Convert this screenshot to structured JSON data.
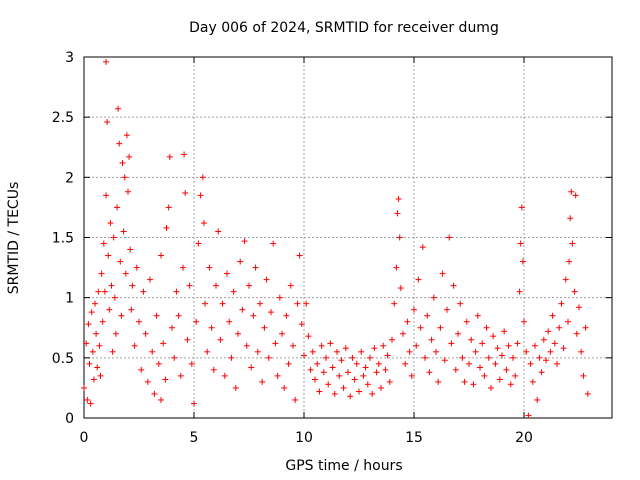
{
  "chart_data": {
    "type": "scatter",
    "title": "Day 006 of 2024, SRMTID for receiver dumg",
    "xlabel": "GPS time / hours",
    "ylabel": "SRMTID / TECUs",
    "xlim": [
      0,
      24
    ],
    "ylim": [
      0,
      3
    ],
    "xticks": [
      0,
      5,
      10,
      15,
      20
    ],
    "xtick_labels": [
      "0",
      "5",
      "10",
      "15",
      "20"
    ],
    "yticks": [
      0,
      0.5,
      1,
      1.5,
      2,
      2.5,
      3
    ],
    "ytick_labels": [
      "0",
      "0.5",
      "1",
      "1.5",
      "2",
      "2.5",
      "3"
    ],
    "grid": true,
    "marker": "+",
    "color": "#ff0000",
    "series": [
      {
        "name": "SRMTID",
        "points": [
          [
            0.0,
            0.25
          ],
          [
            0.1,
            0.62
          ],
          [
            0.15,
            0.15
          ],
          [
            0.2,
            0.78
          ],
          [
            0.25,
            0.45
          ],
          [
            0.3,
            0.12
          ],
          [
            0.35,
            0.88
          ],
          [
            0.4,
            0.55
          ],
          [
            0.45,
            0.32
          ],
          [
            0.5,
            0.95
          ],
          [
            0.55,
            0.7
          ],
          [
            0.6,
            0.42
          ],
          [
            0.65,
            1.05
          ],
          [
            0.7,
            0.6
          ],
          [
            0.75,
            0.35
          ],
          [
            0.8,
            1.2
          ],
          [
            0.85,
            0.8
          ],
          [
            0.9,
            1.45
          ],
          [
            0.95,
            1.05
          ],
          [
            1.0,
            1.85
          ],
          [
            1.0,
            2.96
          ],
          [
            1.05,
            2.46
          ],
          [
            1.1,
            1.35
          ],
          [
            1.15,
            0.9
          ],
          [
            1.2,
            1.62
          ],
          [
            1.25,
            1.1
          ],
          [
            1.3,
            0.55
          ],
          [
            1.35,
            1.5
          ],
          [
            1.4,
            1.0
          ],
          [
            1.45,
            0.7
          ],
          [
            1.5,
            1.75
          ],
          [
            1.55,
            2.57
          ],
          [
            1.6,
            2.28
          ],
          [
            1.65,
            1.3
          ],
          [
            1.7,
            0.85
          ],
          [
            1.75,
            2.12
          ],
          [
            1.8,
            1.55
          ],
          [
            1.85,
            2.0
          ],
          [
            1.9,
            1.2
          ],
          [
            1.95,
            2.35
          ],
          [
            2.0,
            1.88
          ],
          [
            2.05,
            2.17
          ],
          [
            2.1,
            1.4
          ],
          [
            2.15,
            0.9
          ],
          [
            2.2,
            1.1
          ],
          [
            2.3,
            0.6
          ],
          [
            2.4,
            1.25
          ],
          [
            2.5,
            0.8
          ],
          [
            2.6,
            0.4
          ],
          [
            2.7,
            1.05
          ],
          [
            2.8,
            0.7
          ],
          [
            2.9,
            0.3
          ],
          [
            3.0,
            1.15
          ],
          [
            3.1,
            0.55
          ],
          [
            3.2,
            0.2
          ],
          [
            3.3,
            0.85
          ],
          [
            3.4,
            0.45
          ],
          [
            3.5,
            0.15
          ],
          [
            3.6,
            0.62
          ],
          [
            3.7,
            0.32
          ],
          [
            3.5,
            1.35
          ],
          [
            3.75,
            1.58
          ],
          [
            3.85,
            1.75
          ],
          [
            3.9,
            2.17
          ],
          [
            4.0,
            0.75
          ],
          [
            4.1,
            0.5
          ],
          [
            4.2,
            1.05
          ],
          [
            4.3,
            0.85
          ],
          [
            4.4,
            0.35
          ],
          [
            4.5,
            1.25
          ],
          [
            4.55,
            2.19
          ],
          [
            4.6,
            1.87
          ],
          [
            4.7,
            0.65
          ],
          [
            4.8,
            1.1
          ],
          [
            4.9,
            0.45
          ],
          [
            5.0,
            0.12
          ],
          [
            5.1,
            0.8
          ],
          [
            5.2,
            1.45
          ],
          [
            5.3,
            1.85
          ],
          [
            5.4,
            2.0
          ],
          [
            5.45,
            1.62
          ],
          [
            5.5,
            0.95
          ],
          [
            5.6,
            0.55
          ],
          [
            5.7,
            1.25
          ],
          [
            5.8,
            0.75
          ],
          [
            5.9,
            0.4
          ],
          [
            6.0,
            1.1
          ],
          [
            6.1,
            1.55
          ],
          [
            6.2,
            0.65
          ],
          [
            6.3,
            0.95
          ],
          [
            6.4,
            0.35
          ],
          [
            6.5,
            1.2
          ],
          [
            6.6,
            0.8
          ],
          [
            6.7,
            0.5
          ],
          [
            6.8,
            1.05
          ],
          [
            6.9,
            0.25
          ],
          [
            7.0,
            0.7
          ],
          [
            7.1,
            1.3
          ],
          [
            7.2,
            0.9
          ],
          [
            7.3,
            1.47
          ],
          [
            7.4,
            0.6
          ],
          [
            7.5,
            1.1
          ],
          [
            7.6,
            0.42
          ],
          [
            7.7,
            0.85
          ],
          [
            7.8,
            1.25
          ],
          [
            7.9,
            0.55
          ],
          [
            8.0,
            0.95
          ],
          [
            8.1,
            0.3
          ],
          [
            8.2,
            0.75
          ],
          [
            8.3,
            1.15
          ],
          [
            8.4,
            0.5
          ],
          [
            8.5,
            0.88
          ],
          [
            8.6,
            1.45
          ],
          [
            8.7,
            0.62
          ],
          [
            8.8,
            0.35
          ],
          [
            8.9,
            1.0
          ],
          [
            9.0,
            0.7
          ],
          [
            9.1,
            0.25
          ],
          [
            9.2,
            0.85
          ],
          [
            9.3,
            0.45
          ],
          [
            9.4,
            1.1
          ],
          [
            9.5,
            0.6
          ],
          [
            9.6,
            0.15
          ],
          [
            9.7,
            0.95
          ],
          [
            9.8,
            1.35
          ],
          [
            9.9,
            0.78
          ],
          [
            10.0,
            0.52
          ],
          [
            10.1,
            0.95
          ],
          [
            10.2,
            0.68
          ],
          [
            10.3,
            0.4
          ],
          [
            10.4,
            0.55
          ],
          [
            10.5,
            0.32
          ],
          [
            10.6,
            0.45
          ],
          [
            10.7,
            0.22
          ],
          [
            10.8,
            0.6
          ],
          [
            10.9,
            0.38
          ],
          [
            11.0,
            0.5
          ],
          [
            11.1,
            0.28
          ],
          [
            11.2,
            0.62
          ],
          [
            11.3,
            0.42
          ],
          [
            11.4,
            0.2
          ],
          [
            11.5,
            0.55
          ],
          [
            11.6,
            0.35
          ],
          [
            11.7,
            0.48
          ],
          [
            11.8,
            0.25
          ],
          [
            11.9,
            0.58
          ],
          [
            12.0,
            0.38
          ],
          [
            12.1,
            0.18
          ],
          [
            12.2,
            0.5
          ],
          [
            12.3,
            0.32
          ],
          [
            12.4,
            0.45
          ],
          [
            12.5,
            0.22
          ],
          [
            12.6,
            0.55
          ],
          [
            12.7,
            0.35
          ],
          [
            12.8,
            0.42
          ],
          [
            12.9,
            0.28
          ],
          [
            13.0,
            0.5
          ],
          [
            13.1,
            0.2
          ],
          [
            13.2,
            0.58
          ],
          [
            13.3,
            0.38
          ],
          [
            13.4,
            0.45
          ],
          [
            13.5,
            0.25
          ],
          [
            13.6,
            0.6
          ],
          [
            13.7,
            0.4
          ],
          [
            13.8,
            0.52
          ],
          [
            13.9,
            0.3
          ],
          [
            14.0,
            0.65
          ],
          [
            14.1,
            0.95
          ],
          [
            14.2,
            1.25
          ],
          [
            14.25,
            1.7
          ],
          [
            14.3,
            1.82
          ],
          [
            14.35,
            1.5
          ],
          [
            14.4,
            1.08
          ],
          [
            14.5,
            0.7
          ],
          [
            14.6,
            0.45
          ],
          [
            14.7,
            0.8
          ],
          [
            14.8,
            0.55
          ],
          [
            14.9,
            0.35
          ],
          [
            15.0,
            0.9
          ],
          [
            15.1,
            0.6
          ],
          [
            15.2,
            1.15
          ],
          [
            15.3,
            0.75
          ],
          [
            15.4,
            1.42
          ],
          [
            15.5,
            0.5
          ],
          [
            15.6,
            0.85
          ],
          [
            15.7,
            0.38
          ],
          [
            15.8,
            0.65
          ],
          [
            15.9,
            1.0
          ],
          [
            16.0,
            0.55
          ],
          [
            16.1,
            0.3
          ],
          [
            16.2,
            0.75
          ],
          [
            16.3,
            1.2
          ],
          [
            16.4,
            0.48
          ],
          [
            16.5,
            0.9
          ],
          [
            16.6,
            1.5
          ],
          [
            16.7,
            0.62
          ],
          [
            16.8,
            1.1
          ],
          [
            16.9,
            0.4
          ],
          [
            17.0,
            0.7
          ],
          [
            17.1,
            0.95
          ],
          [
            17.2,
            0.5
          ],
          [
            17.3,
            0.3
          ],
          [
            17.4,
            0.8
          ],
          [
            17.5,
            0.45
          ],
          [
            17.6,
            0.65
          ],
          [
            17.7,
            0.28
          ],
          [
            17.8,
            0.55
          ],
          [
            17.9,
            0.85
          ],
          [
            18.0,
            0.42
          ],
          [
            18.1,
            0.62
          ],
          [
            18.2,
            0.35
          ],
          [
            18.3,
            0.75
          ],
          [
            18.4,
            0.5
          ],
          [
            18.5,
            0.25
          ],
          [
            18.6,
            0.68
          ],
          [
            18.7,
            0.45
          ],
          [
            18.8,
            0.58
          ],
          [
            18.9,
            0.32
          ],
          [
            19.0,
            0.52
          ],
          [
            19.1,
            0.72
          ],
          [
            19.2,
            0.4
          ],
          [
            19.3,
            0.6
          ],
          [
            19.4,
            0.28
          ],
          [
            19.5,
            0.5
          ],
          [
            19.6,
            0.35
          ],
          [
            19.7,
            0.62
          ],
          [
            19.8,
            1.05
          ],
          [
            19.85,
            1.45
          ],
          [
            19.9,
            1.75
          ],
          [
            19.95,
            1.3
          ],
          [
            20.0,
            0.8
          ],
          [
            20.1,
            0.55
          ],
          [
            20.2,
            0.02
          ],
          [
            20.3,
            0.45
          ],
          [
            20.4,
            0.3
          ],
          [
            20.5,
            0.6
          ],
          [
            20.6,
            0.15
          ],
          [
            20.7,
            0.5
          ],
          [
            20.8,
            0.38
          ],
          [
            20.9,
            0.65
          ],
          [
            21.0,
            0.48
          ],
          [
            21.1,
            0.72
          ],
          [
            21.2,
            0.55
          ],
          [
            21.3,
            0.85
          ],
          [
            21.4,
            0.62
          ],
          [
            21.5,
            0.45
          ],
          [
            21.6,
            0.75
          ],
          [
            21.7,
            0.95
          ],
          [
            21.8,
            0.58
          ],
          [
            21.9,
            1.15
          ],
          [
            22.0,
            0.8
          ],
          [
            22.05,
            1.3
          ],
          [
            22.1,
            1.66
          ],
          [
            22.15,
            1.88
          ],
          [
            22.2,
            1.45
          ],
          [
            22.3,
            1.05
          ],
          [
            22.35,
            1.85
          ],
          [
            22.4,
            0.7
          ],
          [
            22.5,
            0.92
          ],
          [
            22.6,
            0.55
          ],
          [
            22.7,
            0.35
          ],
          [
            22.8,
            0.75
          ],
          [
            22.9,
            0.2
          ]
        ]
      }
    ]
  }
}
